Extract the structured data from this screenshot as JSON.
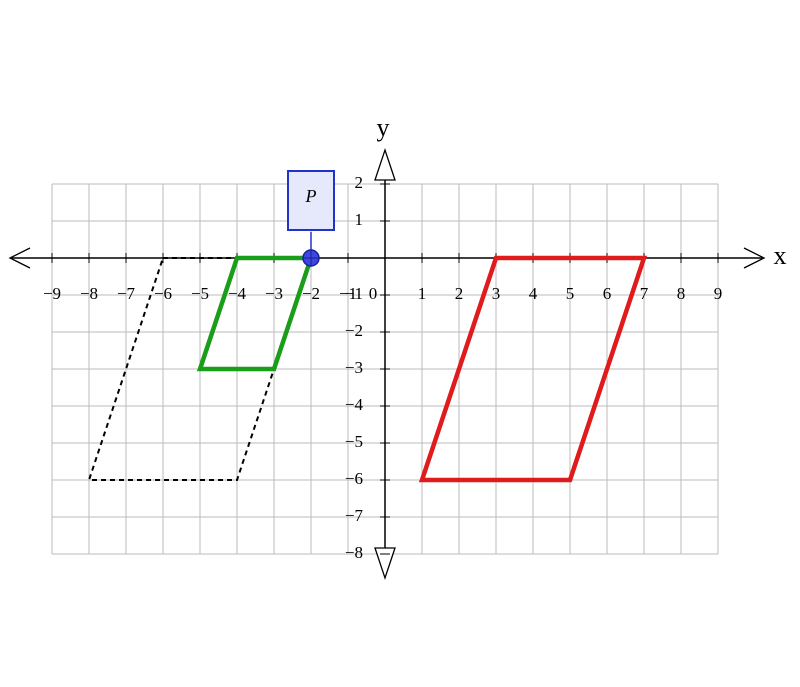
{
  "axes": {
    "x_label": "x",
    "y_label": "y",
    "xlim": [
      -9,
      9
    ],
    "ylim": [
      -8,
      2
    ],
    "xticks": [
      {
        "value": -9,
        "label": "−9"
      },
      {
        "value": -8,
        "label": "−8"
      },
      {
        "value": -7,
        "label": "−7"
      },
      {
        "value": -6,
        "label": "−6"
      },
      {
        "value": -5,
        "label": "−5"
      },
      {
        "value": -4,
        "label": "−4"
      },
      {
        "value": -3,
        "label": "−3"
      },
      {
        "value": -2,
        "label": "−2"
      },
      {
        "value": -1,
        "label": "−1"
      },
      0,
      1,
      2,
      3,
      4,
      5,
      6,
      7,
      8,
      9
    ],
    "yticks": [
      2,
      1,
      {
        "value": -1,
        "label": "−1"
      },
      {
        "value": -2,
        "label": "−2"
      },
      {
        "value": -3,
        "label": "−3"
      },
      {
        "value": -4,
        "label": "−4"
      },
      {
        "value": -5,
        "label": "−5"
      },
      {
        "value": -6,
        "label": "−6"
      },
      {
        "value": -7,
        "label": "−7"
      },
      {
        "value": -8,
        "label": "−8"
      }
    ]
  },
  "shapes": [
    {
      "color": "#000000",
      "dashed": true,
      "points": [
        [
          -6,
          0
        ],
        [
          -2,
          0
        ],
        [
          -4,
          -6
        ],
        [
          -8,
          -6
        ]
      ]
    },
    {
      "color": "#1a9e1a",
      "dashed": false,
      "points": [
        [
          -4,
          0
        ],
        [
          -2,
          0
        ],
        [
          -3,
          -3
        ],
        [
          -5,
          -3
        ]
      ]
    },
    {
      "color": "#e01b1b",
      "dashed": false,
      "points": [
        [
          3,
          0
        ],
        [
          7,
          0
        ],
        [
          5,
          -6
        ],
        [
          1,
          -6
        ]
      ]
    }
  ],
  "point": {
    "label": "P",
    "x": -2,
    "y": 0
  }
}
